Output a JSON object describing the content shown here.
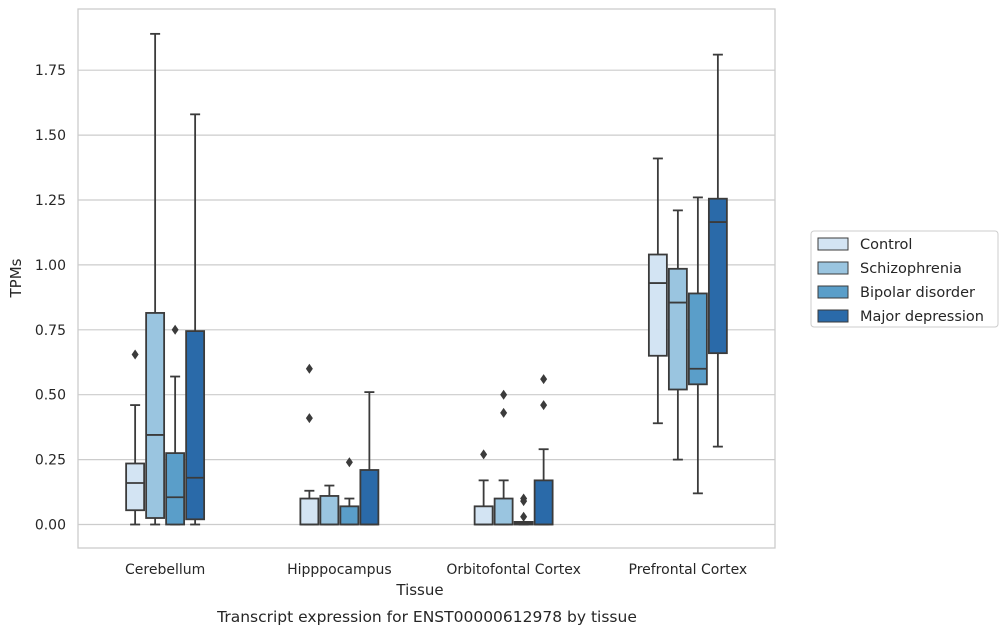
{
  "chart_data": {
    "type": "boxplot",
    "title": "",
    "caption": "Transcript expression for ENST00000612978 by tissue",
    "xlabel": "Tissue",
    "ylabel": "TPMs",
    "ylim": [
      -0.09,
      1.98
    ],
    "yticks": [
      0.0,
      0.25,
      0.5,
      0.75,
      1.0,
      1.25,
      1.5,
      1.75
    ],
    "ytick_labels": [
      "0.00",
      "0.25",
      "0.50",
      "0.75",
      "1.00",
      "1.25",
      "1.50",
      "1.75"
    ],
    "grid": "horizontal",
    "legend_position": "right",
    "categories": [
      "Cerebellum",
      "Hipppocampus",
      "Orbitofontal Cortex",
      "Prefrontal Cortex"
    ],
    "series": [
      {
        "name": "Control",
        "color": "#d3e4f3",
        "boxes": [
          {
            "whislo": 0.0,
            "q1": 0.055,
            "med": 0.16,
            "q3": 0.235,
            "whishi": 0.46,
            "fliers": [
              0.655
            ]
          },
          {
            "whislo": 0.0,
            "q1": 0.0,
            "med": 0.0,
            "q3": 0.1,
            "whishi": 0.13,
            "fliers": [
              0.41,
              0.6
            ]
          },
          {
            "whislo": 0.0,
            "q1": 0.0,
            "med": 0.0,
            "q3": 0.07,
            "whishi": 0.17,
            "fliers": [
              0.27
            ]
          },
          {
            "whislo": 0.39,
            "q1": 0.65,
            "med": 0.93,
            "q3": 1.04,
            "whishi": 1.41,
            "fliers": []
          }
        ]
      },
      {
        "name": "Schizophrenia",
        "color": "#9ac5e0",
        "boxes": [
          {
            "whislo": 0.0,
            "q1": 0.025,
            "med": 0.345,
            "q3": 0.815,
            "whishi": 1.89,
            "fliers": []
          },
          {
            "whislo": 0.0,
            "q1": 0.0,
            "med": 0.0,
            "q3": 0.11,
            "whishi": 0.15,
            "fliers": []
          },
          {
            "whislo": 0.0,
            "q1": 0.0,
            "med": 0.0,
            "q3": 0.1,
            "whishi": 0.17,
            "fliers": [
              0.43,
              0.5
            ]
          },
          {
            "whislo": 0.25,
            "q1": 0.52,
            "med": 0.855,
            "q3": 0.985,
            "whishi": 1.21,
            "fliers": []
          }
        ]
      },
      {
        "name": "Bipolar disorder",
        "color": "#5a9ec9",
        "boxes": [
          {
            "whislo": 0.0,
            "q1": 0.0,
            "med": 0.105,
            "q3": 0.275,
            "whishi": 0.57,
            "fliers": [
              0.75
            ]
          },
          {
            "whislo": 0.0,
            "q1": 0.0,
            "med": 0.0,
            "q3": 0.07,
            "whishi": 0.1,
            "fliers": [
              0.24
            ]
          },
          {
            "whislo": 0.0,
            "q1": 0.0,
            "med": 0.005,
            "q3": 0.01,
            "whishi": 0.01,
            "fliers": [
              0.03,
              0.09,
              0.1
            ]
          },
          {
            "whislo": 0.12,
            "q1": 0.54,
            "med": 0.6,
            "q3": 0.89,
            "whishi": 1.26,
            "fliers": []
          }
        ]
      },
      {
        "name": "Major depression",
        "color": "#2a6aa9",
        "boxes": [
          {
            "whislo": 0.0,
            "q1": 0.02,
            "med": 0.18,
            "q3": 0.745,
            "whishi": 1.58,
            "fliers": []
          },
          {
            "whislo": 0.0,
            "q1": 0.0,
            "med": 0.0,
            "q3": 0.21,
            "whishi": 0.51,
            "fliers": []
          },
          {
            "whislo": 0.0,
            "q1": 0.0,
            "med": 0.0,
            "q3": 0.17,
            "whishi": 0.29,
            "fliers": [
              0.46,
              0.56
            ]
          },
          {
            "whislo": 0.3,
            "q1": 0.66,
            "med": 1.165,
            "q3": 1.255,
            "whishi": 1.81,
            "fliers": []
          }
        ]
      }
    ]
  }
}
